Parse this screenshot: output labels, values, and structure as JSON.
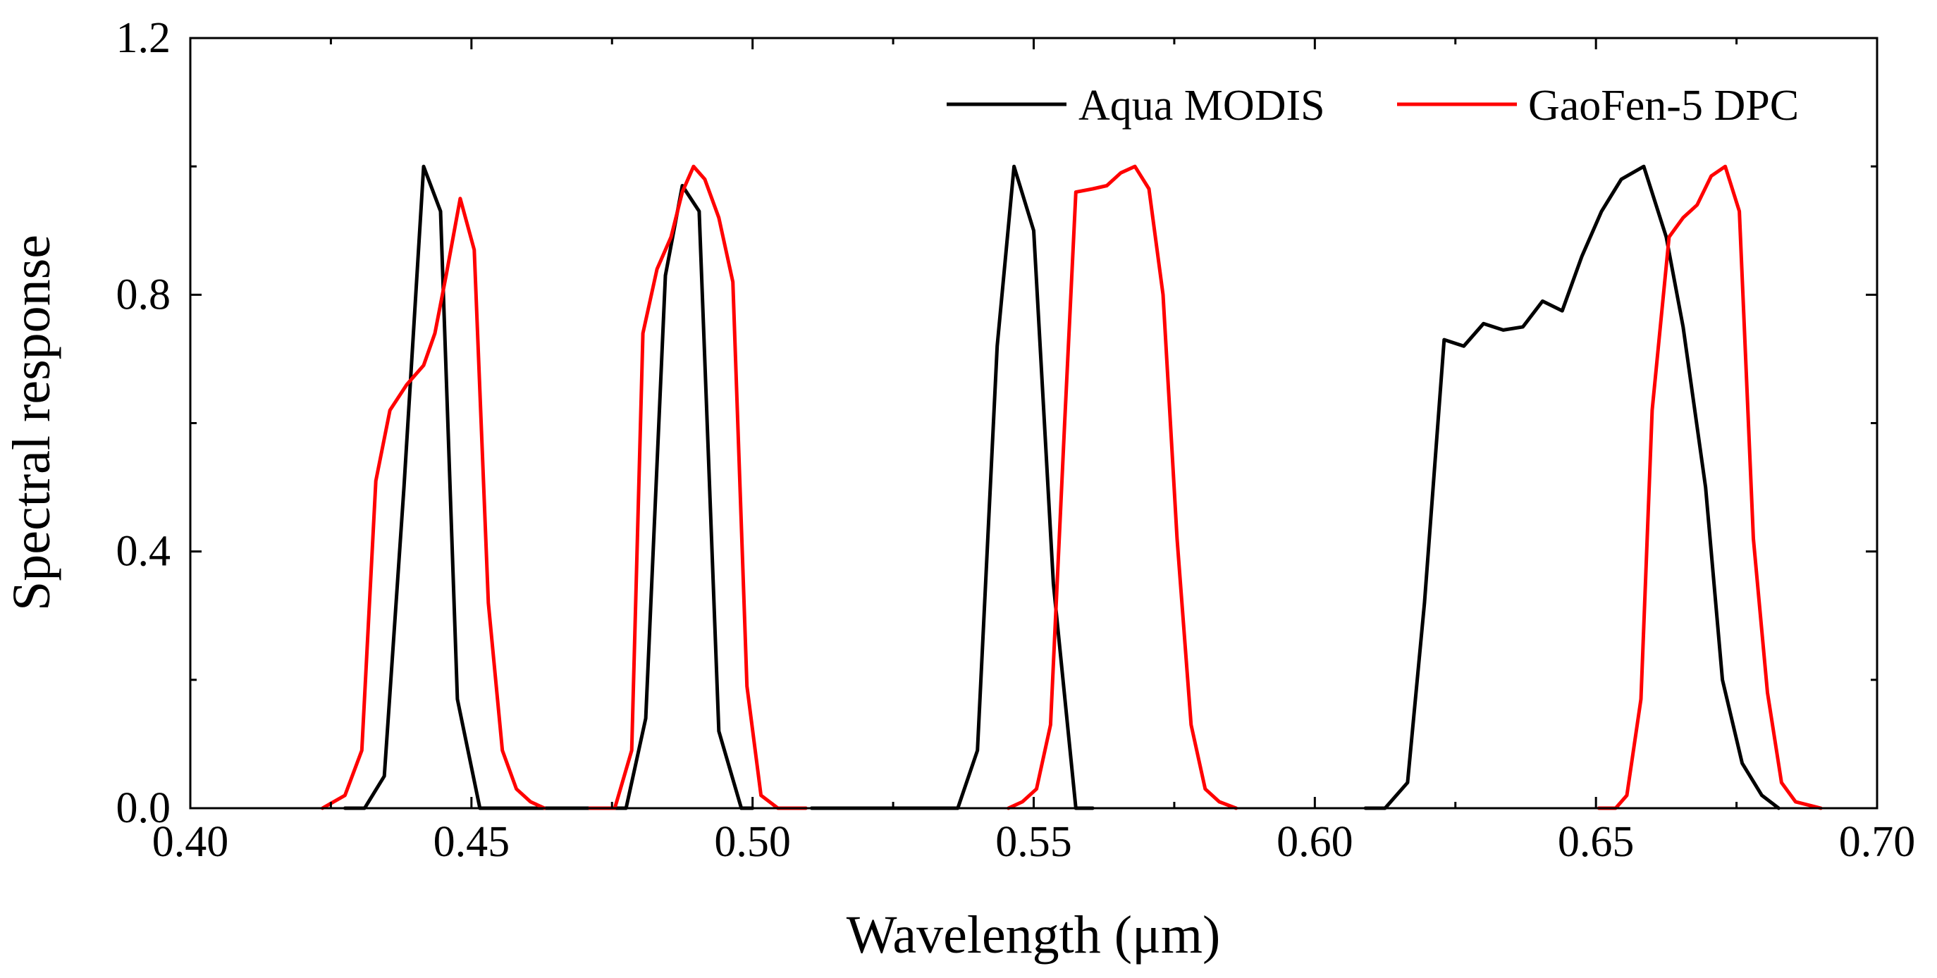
{
  "chart_data": {
    "type": "line",
    "title": "",
    "xlabel": "Wavelength (μm)",
    "ylabel": "Spectral response",
    "xlim": [
      0.4,
      0.7
    ],
    "ylim": [
      0.0,
      1.2
    ],
    "x_ticks": [
      {
        "value": 0.4,
        "label": "0.40"
      },
      {
        "value": 0.45,
        "label": "0.45"
      },
      {
        "value": 0.5,
        "label": "0.50"
      },
      {
        "value": 0.55,
        "label": "0.55"
      },
      {
        "value": 0.6,
        "label": "0.60"
      },
      {
        "value": 0.65,
        "label": "0.65"
      },
      {
        "value": 0.7,
        "label": "0.70"
      }
    ],
    "x_minor_ticks": [
      0.425,
      0.475,
      0.525,
      0.575,
      0.625,
      0.675
    ],
    "y_ticks": [
      {
        "value": 0.0,
        "label": "0.0"
      },
      {
        "value": 0.4,
        "label": "0.4"
      },
      {
        "value": 0.8,
        "label": "0.8"
      },
      {
        "value": 1.2,
        "label": "1.2"
      }
    ],
    "y_minor_ticks": [
      0.2,
      0.6,
      1.0
    ],
    "grid": false,
    "legend_position": "top-right",
    "series": [
      {
        "name": "Aqua MODIS",
        "color": "#000000",
        "segments": [
          [
            [
              0.4275,
              0.0
            ],
            [
              0.431,
              0.0
            ],
            [
              0.4345,
              0.05
            ],
            [
              0.438,
              0.5
            ],
            [
              0.4415,
              1.0
            ],
            [
              0.4445,
              0.93
            ],
            [
              0.4475,
              0.17
            ],
            [
              0.4515,
              0.0
            ],
            [
              0.455,
              0.0
            ],
            [
              0.46,
              0.0
            ],
            [
              0.465,
              0.0
            ],
            [
              0.47,
              0.0
            ],
            [
              0.474,
              0.0
            ],
            [
              0.4775,
              0.0
            ],
            [
              0.481,
              0.14
            ],
            [
              0.4845,
              0.83
            ],
            [
              0.4875,
              0.97
            ],
            [
              0.4905,
              0.93
            ],
            [
              0.494,
              0.12
            ],
            [
              0.498,
              0.0
            ],
            [
              0.5,
              0.0
            ]
          ],
          [
            [
              0.5105,
              0.0
            ],
            [
              0.52,
              0.0
            ],
            [
              0.53,
              0.0
            ],
            [
              0.5365,
              0.0
            ],
            [
              0.54,
              0.09
            ],
            [
              0.5435,
              0.72
            ],
            [
              0.5465,
              1.0
            ],
            [
              0.55,
              0.9
            ],
            [
              0.5535,
              0.35
            ],
            [
              0.5575,
              0.0
            ],
            [
              0.5605,
              0.0
            ]
          ],
          [
            [
              0.609,
              0.0
            ],
            [
              0.6125,
              0.0
            ],
            [
              0.6165,
              0.04
            ],
            [
              0.6195,
              0.32
            ],
            [
              0.623,
              0.73
            ],
            [
              0.6265,
              0.72
            ],
            [
              0.63,
              0.755
            ],
            [
              0.6335,
              0.745
            ],
            [
              0.637,
              0.75
            ],
            [
              0.6405,
              0.79
            ],
            [
              0.644,
              0.775
            ],
            [
              0.6475,
              0.86
            ],
            [
              0.651,
              0.93
            ],
            [
              0.6545,
              0.98
            ],
            [
              0.6585,
              1.0
            ],
            [
              0.6625,
              0.89
            ],
            [
              0.6655,
              0.75
            ],
            [
              0.6695,
              0.5
            ],
            [
              0.6725,
              0.2
            ],
            [
              0.676,
              0.07
            ],
            [
              0.6795,
              0.02
            ],
            [
              0.6825,
              0.0
            ]
          ]
        ]
      },
      {
        "name": "GaoFen-5 DPC",
        "color": "#ff0000",
        "segments": [
          [
            [
              0.4235,
              0.0
            ],
            [
              0.4275,
              0.02
            ],
            [
              0.4305,
              0.09
            ],
            [
              0.433,
              0.51
            ],
            [
              0.4355,
              0.62
            ],
            [
              0.4385,
              0.66
            ],
            [
              0.4415,
              0.69
            ],
            [
              0.4435,
              0.74
            ],
            [
              0.4455,
              0.83
            ],
            [
              0.448,
              0.95
            ],
            [
              0.4505,
              0.87
            ],
            [
              0.453,
              0.32
            ],
            [
              0.4555,
              0.09
            ],
            [
              0.458,
              0.03
            ],
            [
              0.4605,
              0.01
            ],
            [
              0.463,
              0.0
            ]
          ],
          [
            [
              0.471,
              0.0
            ],
            [
              0.4755,
              0.0
            ],
            [
              0.4785,
              0.09
            ],
            [
              0.4805,
              0.74
            ],
            [
              0.483,
              0.84
            ],
            [
              0.4855,
              0.89
            ],
            [
              0.4875,
              0.96
            ],
            [
              0.4895,
              1.0
            ],
            [
              0.4915,
              0.98
            ],
            [
              0.494,
              0.92
            ],
            [
              0.4965,
              0.82
            ],
            [
              0.499,
              0.19
            ],
            [
              0.5015,
              0.02
            ],
            [
              0.5045,
              0.0
            ],
            [
              0.5095,
              0.0
            ]
          ],
          [
            [
              0.5455,
              0.0
            ],
            [
              0.548,
              0.01
            ],
            [
              0.5505,
              0.03
            ],
            [
              0.553,
              0.13
            ],
            [
              0.5555,
              0.6
            ],
            [
              0.5575,
              0.96
            ],
            [
              0.5605,
              0.965
            ],
            [
              0.563,
              0.97
            ],
            [
              0.5655,
              0.99
            ],
            [
              0.568,
              1.0
            ],
            [
              0.5705,
              0.965
            ],
            [
              0.573,
              0.8
            ],
            [
              0.5755,
              0.42
            ],
            [
              0.578,
              0.13
            ],
            [
              0.5805,
              0.03
            ],
            [
              0.583,
              0.01
            ],
            [
              0.586,
              0.0
            ]
          ],
          [
            [
              0.6505,
              0.0
            ],
            [
              0.6535,
              0.0
            ],
            [
              0.6555,
              0.02
            ],
            [
              0.658,
              0.17
            ],
            [
              0.66,
              0.62
            ],
            [
              0.663,
              0.89
            ],
            [
              0.6655,
              0.92
            ],
            [
              0.668,
              0.94
            ],
            [
              0.6705,
              0.985
            ],
            [
              0.673,
              1.0
            ],
            [
              0.6755,
              0.93
            ],
            [
              0.678,
              0.42
            ],
            [
              0.6805,
              0.18
            ],
            [
              0.683,
              0.04
            ],
            [
              0.6855,
              0.01
            ],
            [
              0.69,
              0.0
            ]
          ]
        ]
      }
    ]
  }
}
